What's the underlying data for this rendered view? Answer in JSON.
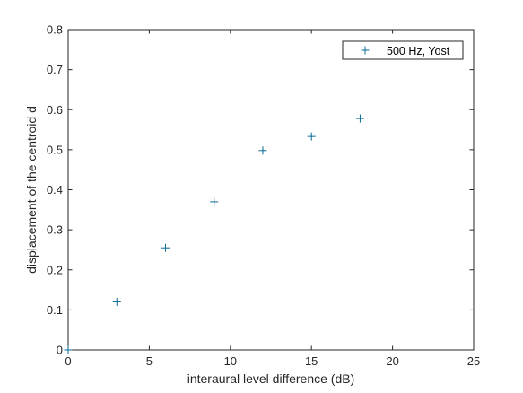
{
  "chart_data": {
    "type": "scatter",
    "xlabel": "interaural level difference (dB)",
    "ylabel": "displacement of the centroid d",
    "xlim": [
      0,
      25
    ],
    "ylim": [
      0,
      0.8
    ],
    "xticks": [
      0,
      5,
      10,
      15,
      20,
      25
    ],
    "yticks": [
      0,
      0.1,
      0.2,
      0.3,
      0.4,
      0.5,
      0.6,
      0.7,
      0.8
    ],
    "xtick_labels": [
      "0",
      "5",
      "10",
      "15",
      "20",
      "25"
    ],
    "ytick_labels": [
      "0",
      "0.1",
      "0.2",
      "0.3",
      "0.4",
      "0.5",
      "0.6",
      "0.7",
      "0.8"
    ],
    "grid": false,
    "legend_position": "top-right",
    "series": [
      {
        "name": "500 Hz, Yost",
        "marker": "plus",
        "color": "#0a6a96",
        "x": [
          0,
          3,
          6,
          9,
          12,
          15,
          18
        ],
        "y": [
          0,
          0.12,
          0.255,
          0.37,
          0.498,
          0.533,
          0.578
        ]
      }
    ]
  }
}
